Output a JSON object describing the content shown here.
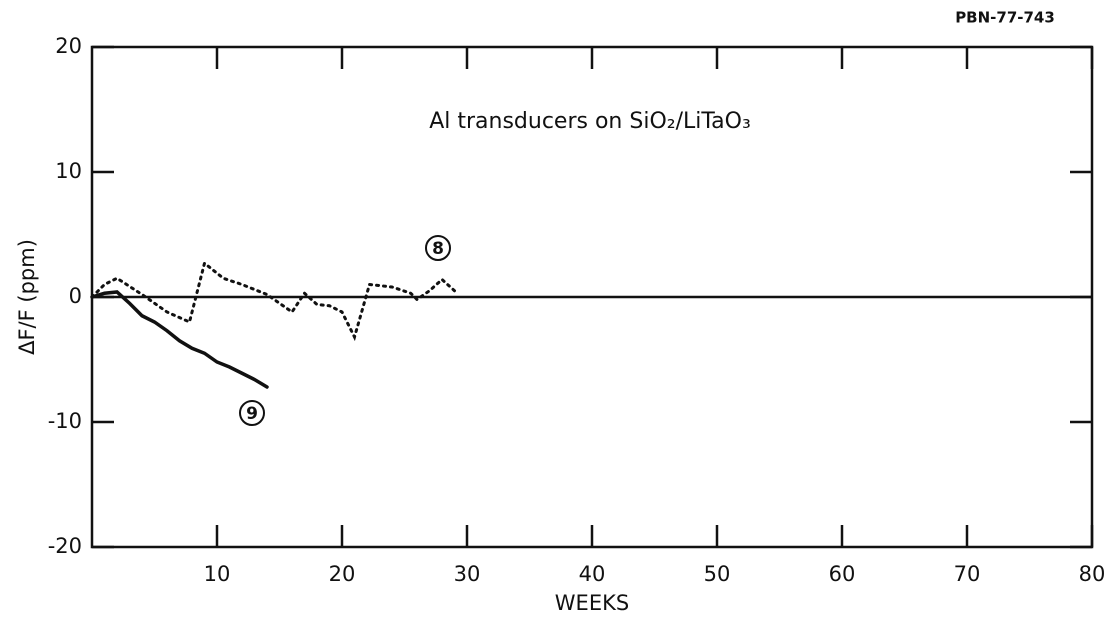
{
  "chart_data": {
    "type": "line",
    "title": "Al transducers on SiO₂/LiTaO₃",
    "figure_id": "PBN-77-743",
    "xlabel": "WEEKS",
    "ylabel": "ΔF/F (ppm)",
    "xlim": [
      0,
      80
    ],
    "xticks": [
      10,
      20,
      30,
      40,
      50,
      60,
      70,
      80
    ],
    "ylim": [
      -20,
      20
    ],
    "yticks": [
      -20,
      -10,
      0,
      10,
      20
    ],
    "series": [
      {
        "name": "8",
        "color": "#111111",
        "style": "dotted",
        "x": [
          0,
          1,
          2,
          4,
          6,
          7.8,
          9,
          10.5,
          12,
          14,
          16,
          17,
          18,
          19,
          20,
          21,
          22.2,
          24,
          25.5,
          26,
          27,
          28,
          29
        ],
        "values": [
          0,
          1.0,
          1.5,
          0.2,
          -1.2,
          -2,
          2.7,
          1.5,
          1,
          0.2,
          -1.2,
          0.3,
          -0.6,
          -0.7,
          -1.2,
          -3.2,
          1,
          0.8,
          0.3,
          -0.2,
          0.5,
          1.4,
          0.5
        ]
      },
      {
        "name": "9",
        "color": "#111111",
        "style": "solid",
        "x": [
          0,
          1,
          2,
          3,
          4,
          5,
          6,
          7,
          8,
          9,
          10,
          11,
          12,
          13,
          14
        ],
        "values": [
          0,
          0.3,
          0.4,
          -0.5,
          -1.5,
          -2,
          -2.7,
          -3.5,
          -4.1,
          -4.5,
          -5.2,
          -5.6,
          -6.1,
          -6.6,
          -7.2
        ]
      }
    ]
  }
}
